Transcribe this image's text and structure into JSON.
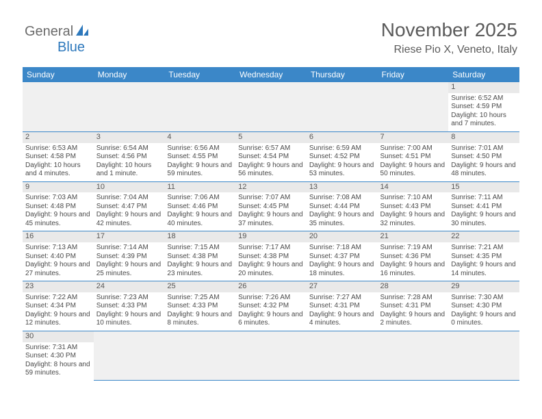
{
  "logo": {
    "text1": "General",
    "text2": "Blue"
  },
  "title": "November 2025",
  "location": "Riese Pio X, Veneto, Italy",
  "colors": {
    "header_bg": "#3b87c8",
    "header_text": "#ffffff",
    "daynum_bg": "#e9e9e9",
    "blank_bg": "#f0f0f0",
    "cell_border": "#3b87c8",
    "logo_gray": "#6b6b6b",
    "logo_blue": "#2d78bc",
    "title_color": "#5a5a5a",
    "text_color": "#4a4a4a"
  },
  "weekdays": [
    "Sunday",
    "Monday",
    "Tuesday",
    "Wednesday",
    "Thursday",
    "Friday",
    "Saturday"
  ],
  "days": {
    "1": {
      "sunrise": "6:52 AM",
      "sunset": "4:59 PM",
      "daylight": "10 hours and 7 minutes."
    },
    "2": {
      "sunrise": "6:53 AM",
      "sunset": "4:58 PM",
      "daylight": "10 hours and 4 minutes."
    },
    "3": {
      "sunrise": "6:54 AM",
      "sunset": "4:56 PM",
      "daylight": "10 hours and 1 minute."
    },
    "4": {
      "sunrise": "6:56 AM",
      "sunset": "4:55 PM",
      "daylight": "9 hours and 59 minutes."
    },
    "5": {
      "sunrise": "6:57 AM",
      "sunset": "4:54 PM",
      "daylight": "9 hours and 56 minutes."
    },
    "6": {
      "sunrise": "6:59 AM",
      "sunset": "4:52 PM",
      "daylight": "9 hours and 53 minutes."
    },
    "7": {
      "sunrise": "7:00 AM",
      "sunset": "4:51 PM",
      "daylight": "9 hours and 50 minutes."
    },
    "8": {
      "sunrise": "7:01 AM",
      "sunset": "4:50 PM",
      "daylight": "9 hours and 48 minutes."
    },
    "9": {
      "sunrise": "7:03 AM",
      "sunset": "4:48 PM",
      "daylight": "9 hours and 45 minutes."
    },
    "10": {
      "sunrise": "7:04 AM",
      "sunset": "4:47 PM",
      "daylight": "9 hours and 42 minutes."
    },
    "11": {
      "sunrise": "7:06 AM",
      "sunset": "4:46 PM",
      "daylight": "9 hours and 40 minutes."
    },
    "12": {
      "sunrise": "7:07 AM",
      "sunset": "4:45 PM",
      "daylight": "9 hours and 37 minutes."
    },
    "13": {
      "sunrise": "7:08 AM",
      "sunset": "4:44 PM",
      "daylight": "9 hours and 35 minutes."
    },
    "14": {
      "sunrise": "7:10 AM",
      "sunset": "4:43 PM",
      "daylight": "9 hours and 32 minutes."
    },
    "15": {
      "sunrise": "7:11 AM",
      "sunset": "4:41 PM",
      "daylight": "9 hours and 30 minutes."
    },
    "16": {
      "sunrise": "7:13 AM",
      "sunset": "4:40 PM",
      "daylight": "9 hours and 27 minutes."
    },
    "17": {
      "sunrise": "7:14 AM",
      "sunset": "4:39 PM",
      "daylight": "9 hours and 25 minutes."
    },
    "18": {
      "sunrise": "7:15 AM",
      "sunset": "4:38 PM",
      "daylight": "9 hours and 23 minutes."
    },
    "19": {
      "sunrise": "7:17 AM",
      "sunset": "4:38 PM",
      "daylight": "9 hours and 20 minutes."
    },
    "20": {
      "sunrise": "7:18 AM",
      "sunset": "4:37 PM",
      "daylight": "9 hours and 18 minutes."
    },
    "21": {
      "sunrise": "7:19 AM",
      "sunset": "4:36 PM",
      "daylight": "9 hours and 16 minutes."
    },
    "22": {
      "sunrise": "7:21 AM",
      "sunset": "4:35 PM",
      "daylight": "9 hours and 14 minutes."
    },
    "23": {
      "sunrise": "7:22 AM",
      "sunset": "4:34 PM",
      "daylight": "9 hours and 12 minutes."
    },
    "24": {
      "sunrise": "7:23 AM",
      "sunset": "4:33 PM",
      "daylight": "9 hours and 10 minutes."
    },
    "25": {
      "sunrise": "7:25 AM",
      "sunset": "4:33 PM",
      "daylight": "9 hours and 8 minutes."
    },
    "26": {
      "sunrise": "7:26 AM",
      "sunset": "4:32 PM",
      "daylight": "9 hours and 6 minutes."
    },
    "27": {
      "sunrise": "7:27 AM",
      "sunset": "4:31 PM",
      "daylight": "9 hours and 4 minutes."
    },
    "28": {
      "sunrise": "7:28 AM",
      "sunset": "4:31 PM",
      "daylight": "9 hours and 2 minutes."
    },
    "29": {
      "sunrise": "7:30 AM",
      "sunset": "4:30 PM",
      "daylight": "9 hours and 0 minutes."
    },
    "30": {
      "sunrise": "7:31 AM",
      "sunset": "4:30 PM",
      "daylight": "8 hours and 59 minutes."
    }
  },
  "labels": {
    "sunrise": "Sunrise:",
    "sunset": "Sunset:",
    "daylight": "Daylight:"
  },
  "layout": {
    "first_weekday_index": 6,
    "num_days": 30,
    "columns": 7
  }
}
